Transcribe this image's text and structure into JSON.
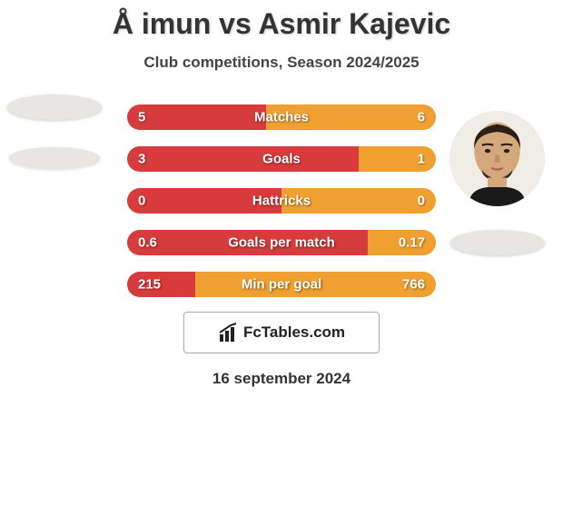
{
  "title": "Å imun vs Asmir Kajevic",
  "subtitle": "Club competitions, Season 2024/2025",
  "date": "16 september 2024",
  "fctables_label": "FcTables.com",
  "left_color": "#d73b3b",
  "right_color": "#f0a030",
  "bars": [
    {
      "label": "Matches",
      "left": "5",
      "right": "6",
      "left_pct": 45,
      "right_pct": 55
    },
    {
      "label": "Goals",
      "left": "3",
      "right": "1",
      "left_pct": 75,
      "right_pct": 25
    },
    {
      "label": "Hattricks",
      "left": "0",
      "right": "0",
      "left_pct": 50,
      "right_pct": 50
    },
    {
      "label": "Goals per match",
      "left": "0.6",
      "right": "0.17",
      "left_pct": 78,
      "right_pct": 22
    },
    {
      "label": "Min per goal",
      "left": "215",
      "right": "766",
      "left_pct": 22,
      "right_pct": 78
    }
  ],
  "avatar_right_bg": "#f0ede6"
}
